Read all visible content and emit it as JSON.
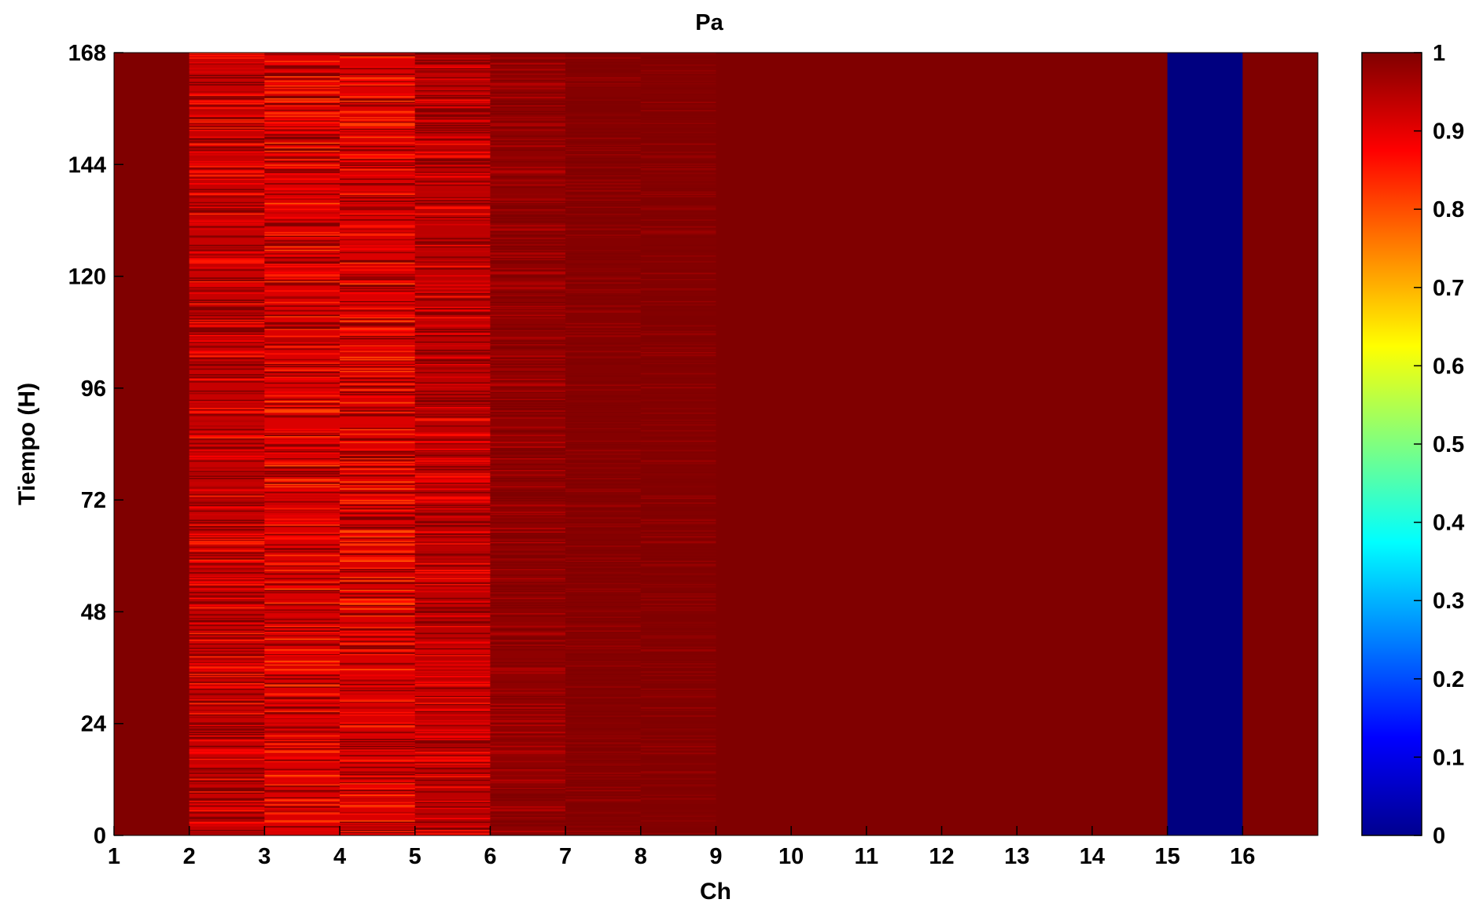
{
  "chart_data": {
    "type": "heatmap",
    "title": "Pa",
    "xlabel": "Ch",
    "ylabel": "Tiempo (H)",
    "x_ticks": [
      "1",
      "2",
      "3",
      "4",
      "5",
      "6",
      "7",
      "8",
      "9",
      "10",
      "11",
      "12",
      "13",
      "14",
      "15",
      "16"
    ],
    "xlim": [
      1,
      17
    ],
    "y_ticks": [
      "0",
      "24",
      "48",
      "72",
      "96",
      "120",
      "144",
      "168"
    ],
    "ylim": [
      0,
      168
    ],
    "colorbar": {
      "colormap": "jet",
      "range": [
        0,
        1
      ],
      "ticks": [
        "0",
        "0.1",
        "0.2",
        "0.3",
        "0.4",
        "0.5",
        "0.6",
        "0.7",
        "0.8",
        "0.9",
        "1"
      ]
    },
    "channels": [
      1,
      2,
      3,
      4,
      5,
      6,
      7,
      8,
      9,
      10,
      11,
      12,
      13,
      14,
      15,
      16
    ],
    "channel_mean": [
      1.0,
      0.93,
      0.91,
      0.91,
      0.94,
      0.985,
      0.995,
      0.997,
      1.0,
      1.0,
      1.0,
      1.0,
      1.0,
      1.0,
      0.0,
      1.0
    ],
    "channel_min": [
      1.0,
      0.83,
      0.8,
      0.8,
      0.85,
      0.94,
      0.97,
      0.97,
      1.0,
      1.0,
      1.0,
      1.0,
      1.0,
      1.0,
      0.0,
      1.0
    ]
  }
}
